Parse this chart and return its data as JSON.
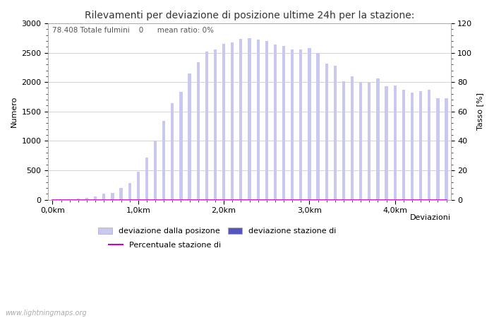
{
  "title": "Rilevamenti per deviazione di posizione ultime 24h per la stazione:",
  "subtitle": "78.408 Totale fulmini    0      mean ratio: 0%",
  "ylabel_left": "Numero",
  "ylabel_right": "Tasso [%]",
  "xlabel": "Deviazioni",
  "watermark": "www.lightningmaps.org",
  "bar_values": [
    0,
    5,
    10,
    15,
    30,
    60,
    100,
    120,
    200,
    280,
    480,
    720,
    1000,
    1340,
    1640,
    1830,
    2150,
    2340,
    2520,
    2560,
    2650,
    2680,
    2730,
    2750,
    2720,
    2700,
    2640,
    2620,
    2560,
    2550,
    2580,
    2490,
    2310,
    2280,
    2020,
    2100,
    2000,
    1990,
    2060,
    1930,
    1940,
    1870,
    1820,
    1840,
    1870,
    1720,
    1720
  ],
  "blue_bar_values": [
    0,
    0,
    0,
    0,
    0,
    0,
    0,
    0,
    0,
    0,
    0,
    0,
    0,
    0,
    0,
    0,
    0,
    0,
    0,
    0,
    0,
    0,
    0,
    0,
    0,
    0,
    0,
    0,
    0,
    0,
    0,
    0,
    0,
    0,
    0,
    0,
    0,
    0,
    0,
    0,
    0,
    0,
    0,
    0,
    0,
    0,
    0
  ],
  "percent_values": [
    0,
    0,
    0,
    0,
    0,
    0,
    0,
    0,
    0,
    0,
    0,
    0,
    0,
    0,
    0,
    0,
    0,
    0,
    0,
    0,
    0,
    0,
    0,
    0,
    0,
    0,
    0,
    0,
    0,
    0,
    0,
    0,
    0,
    0,
    0,
    0,
    0,
    0,
    0,
    0,
    0,
    0,
    0,
    0,
    0,
    0,
    0
  ],
  "bar_color_light": "#c8c8f0",
  "bar_color_dark": "#5555bb",
  "line_color": "#cc00cc",
  "ylim_left": [
    0,
    3000
  ],
  "ylim_right": [
    0,
    120
  ],
  "km_tick_positions": [
    0,
    10,
    20,
    30,
    40
  ],
  "km_tick_labels": [
    "0,0km",
    "1,0km",
    "2,0km",
    "3,0km",
    "4,0km"
  ],
  "legend_label_light": "deviazione dalla posizone",
  "legend_label_dark": "deviazione stazione di",
  "legend_label_line": "Percentuale stazione di",
  "background_color": "#ffffff",
  "grid_color": "#cccccc",
  "title_fontsize": 10,
  "label_fontsize": 8,
  "tick_fontsize": 8,
  "bar_width": 0.35
}
